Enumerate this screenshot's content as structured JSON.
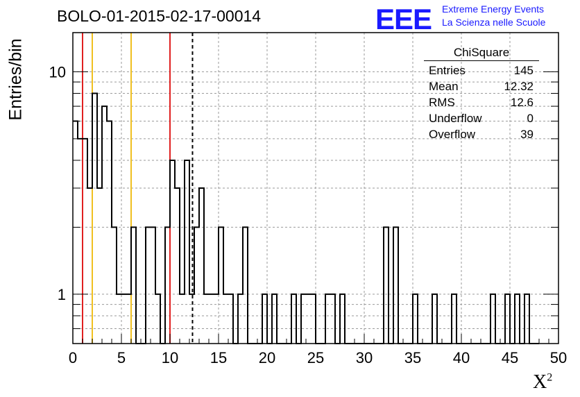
{
  "header": {
    "title": "BOLO-01-2015-02-17-00014",
    "logo_mark": "EEE",
    "logo_line1": "Extreme Energy Events",
    "logo_line2": "La Scienza nelle Scuole"
  },
  "axes": {
    "ylabel": "Entries/bin",
    "xlabel": "X",
    "xlabel_sup": "2"
  },
  "stats": {
    "title": "ChiSquare",
    "rows": [
      {
        "label": "Entries",
        "value": "145"
      },
      {
        "label": "Mean",
        "value": "12.32"
      },
      {
        "label": "RMS",
        "value": "12.6"
      },
      {
        "label": "Underflow",
        "value": "0"
      },
      {
        "label": "Overflow",
        "value": "39"
      }
    ]
  },
  "chart_data": {
    "type": "histogram",
    "title": "BOLO-01-2015-02-17-00014",
    "xlabel": "X²",
    "ylabel": "Entries/bin",
    "xlim": [
      0,
      50
    ],
    "ylim": [
      0.6,
      15
    ],
    "yscale": "log",
    "bin_width": 0.5,
    "x_ticks": [
      0,
      5,
      10,
      15,
      20,
      25,
      30,
      35,
      40,
      45,
      50
    ],
    "y_ticks": [
      1,
      10
    ],
    "grid": true,
    "bins": [
      {
        "x": 0.0,
        "y": 6
      },
      {
        "x": 0.5,
        "y": 5
      },
      {
        "x": 1.0,
        "y": 5
      },
      {
        "x": 1.5,
        "y": 3
      },
      {
        "x": 2.0,
        "y": 8
      },
      {
        "x": 2.5,
        "y": 3
      },
      {
        "x": 3.0,
        "y": 7
      },
      {
        "x": 3.5,
        "y": 6
      },
      {
        "x": 4.0,
        "y": 2
      },
      {
        "x": 4.5,
        "y": 1
      },
      {
        "x": 5.0,
        "y": 1
      },
      {
        "x": 5.5,
        "y": 1
      },
      {
        "x": 6.0,
        "y": 2
      },
      {
        "x": 6.5,
        "y": 0
      },
      {
        "x": 7.0,
        "y": 0
      },
      {
        "x": 7.5,
        "y": 2
      },
      {
        "x": 8.0,
        "y": 2
      },
      {
        "x": 8.5,
        "y": 1
      },
      {
        "x": 9.0,
        "y": 0
      },
      {
        "x": 9.5,
        "y": 2
      },
      {
        "x": 10.0,
        "y": 4
      },
      {
        "x": 10.5,
        "y": 3
      },
      {
        "x": 11.0,
        "y": 1
      },
      {
        "x": 11.5,
        "y": 4
      },
      {
        "x": 12.0,
        "y": 1
      },
      {
        "x": 12.5,
        "y": 2
      },
      {
        "x": 13.0,
        "y": 3
      },
      {
        "x": 13.5,
        "y": 1
      },
      {
        "x": 14.0,
        "y": 1
      },
      {
        "x": 14.5,
        "y": 1
      },
      {
        "x": 15.0,
        "y": 2
      },
      {
        "x": 15.5,
        "y": 1
      },
      {
        "x": 16.0,
        "y": 1
      },
      {
        "x": 16.5,
        "y": 0
      },
      {
        "x": 17.0,
        "y": 1
      },
      {
        "x": 17.5,
        "y": 2
      },
      {
        "x": 18.0,
        "y": 0
      },
      {
        "x": 18.5,
        "y": 0
      },
      {
        "x": 19.0,
        "y": 0
      },
      {
        "x": 19.5,
        "y": 1
      },
      {
        "x": 20.0,
        "y": 0
      },
      {
        "x": 20.5,
        "y": 1
      },
      {
        "x": 21.0,
        "y": 0
      },
      {
        "x": 21.5,
        "y": 0
      },
      {
        "x": 22.0,
        "y": 0
      },
      {
        "x": 22.5,
        "y": 1
      },
      {
        "x": 23.0,
        "y": 0
      },
      {
        "x": 23.5,
        "y": 1
      },
      {
        "x": 24.0,
        "y": 1
      },
      {
        "x": 24.5,
        "y": 1
      },
      {
        "x": 25.0,
        "y": 0
      },
      {
        "x": 25.5,
        "y": 0
      },
      {
        "x": 26.0,
        "y": 1
      },
      {
        "x": 26.5,
        "y": 1
      },
      {
        "x": 27.0,
        "y": 0
      },
      {
        "x": 27.5,
        "y": 1
      },
      {
        "x": 28.0,
        "y": 0
      },
      {
        "x": 28.5,
        "y": 0
      },
      {
        "x": 29.0,
        "y": 0
      },
      {
        "x": 29.5,
        "y": 0
      },
      {
        "x": 30.0,
        "y": 0
      },
      {
        "x": 30.5,
        "y": 0
      },
      {
        "x": 31.0,
        "y": 0
      },
      {
        "x": 31.5,
        "y": 0
      },
      {
        "x": 32.0,
        "y": 2
      },
      {
        "x": 32.5,
        "y": 0
      },
      {
        "x": 33.0,
        "y": 2
      },
      {
        "x": 33.5,
        "y": 0
      },
      {
        "x": 34.0,
        "y": 0
      },
      {
        "x": 34.5,
        "y": 0
      },
      {
        "x": 35.0,
        "y": 1
      },
      {
        "x": 35.5,
        "y": 0
      },
      {
        "x": 36.0,
        "y": 0
      },
      {
        "x": 36.5,
        "y": 0
      },
      {
        "x": 37.0,
        "y": 1
      },
      {
        "x": 37.5,
        "y": 0
      },
      {
        "x": 38.0,
        "y": 0
      },
      {
        "x": 38.5,
        "y": 0
      },
      {
        "x": 39.0,
        "y": 1
      },
      {
        "x": 39.5,
        "y": 0
      },
      {
        "x": 40.0,
        "y": 0
      },
      {
        "x": 40.5,
        "y": 0
      },
      {
        "x": 41.0,
        "y": 0
      },
      {
        "x": 41.5,
        "y": 0
      },
      {
        "x": 42.0,
        "y": 0
      },
      {
        "x": 42.5,
        "y": 0
      },
      {
        "x": 43.0,
        "y": 1
      },
      {
        "x": 43.5,
        "y": 0
      },
      {
        "x": 44.0,
        "y": 0
      },
      {
        "x": 44.5,
        "y": 1
      },
      {
        "x": 45.0,
        "y": 0
      },
      {
        "x": 45.5,
        "y": 1
      },
      {
        "x": 46.0,
        "y": 0
      },
      {
        "x": 46.5,
        "y": 1
      },
      {
        "x": 47.0,
        "y": 0
      },
      {
        "x": 47.5,
        "y": 0
      }
    ],
    "vertical_lines": [
      {
        "x": 1,
        "color": "#e02020",
        "style": "solid"
      },
      {
        "x": 2,
        "color": "#f0c020",
        "style": "solid"
      },
      {
        "x": 6,
        "color": "#f0c020",
        "style": "solid"
      },
      {
        "x": 10,
        "color": "#e02020",
        "style": "solid"
      },
      {
        "x": 12.32,
        "color": "#000000",
        "style": "dashed"
      }
    ],
    "colors": {
      "histogram": "#000000",
      "grid": "#9a9a9a",
      "logo": "#1a1aff"
    }
  }
}
